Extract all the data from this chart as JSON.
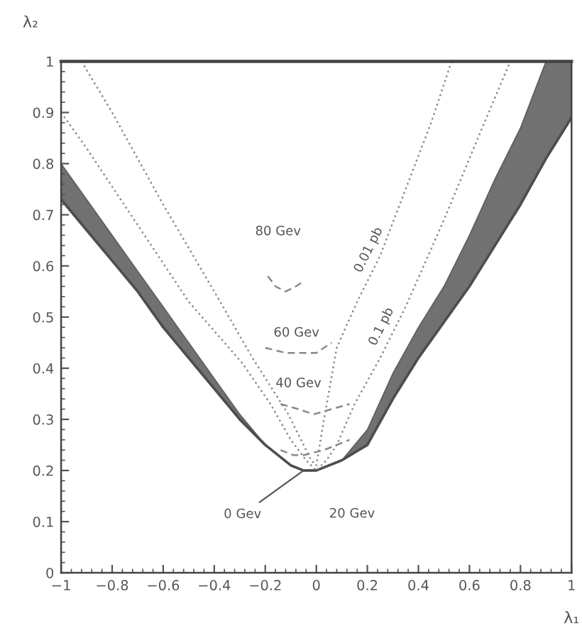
{
  "chart_data": {
    "type": "line",
    "xlabel": "λ₁",
    "ylabel": "λ₂",
    "xlim": [
      -1,
      1
    ],
    "ylim": [
      0,
      1
    ],
    "xticks": [
      {
        "value": -1,
        "label": "−1"
      },
      {
        "value": -0.8,
        "label": "−0.8"
      },
      {
        "value": -0.6,
        "label": "−0.6"
      },
      {
        "value": -0.4,
        "label": "−0.4"
      },
      {
        "value": -0.2,
        "label": "−0.2"
      },
      0,
      0.2,
      0.4,
      0.6,
      0.8,
      1
    ],
    "yticks": [
      0,
      0.1,
      0.2,
      0.3,
      0.4,
      0.5,
      0.6,
      0.7,
      0.8,
      0.9,
      1
    ],
    "series": [
      {
        "color": "#4d4d4d",
        "x": [
          -1,
          -0.9,
          -0.8,
          -0.7,
          -0.6,
          -0.5,
          -0.4,
          -0.3,
          -0.2,
          -0.1,
          -0.05,
          0,
          0.1,
          0.2,
          0.3,
          0.4,
          0.5,
          0.6,
          0.7,
          0.8,
          0.9,
          1
        ],
        "values": [
          0.73,
          0.67,
          0.61,
          0.55,
          0.48,
          0.42,
          0.36,
          0.3,
          0.25,
          0.21,
          0.2,
          0.2,
          0.22,
          0.25,
          0.34,
          0.42,
          0.49,
          0.56,
          0.64,
          0.72,
          0.81,
          0.89
        ],
        "lower": [
          0.73,
          0.67,
          0.61,
          0.55,
          0.48,
          0.42,
          0.36,
          0.3,
          0.25,
          0.21,
          0.2,
          0.2,
          0.22,
          0.25,
          0.34,
          0.42,
          0.49,
          0.56,
          0.64,
          0.72,
          0.81,
          0.89
        ],
        "upper": [
          0.8,
          0.73,
          0.66,
          0.59,
          0.52,
          0.45,
          0.38,
          0.31,
          0.25,
          0.21,
          0.2,
          0.2,
          0.22,
          0.28,
          0.39,
          0.48,
          0.56,
          0.66,
          0.77,
          0.87,
          1,
          1
        ]
      },
      {
        "color": "#8a8a8a",
        "line_style": "dotted",
        "x": [
          -0.92,
          -0.8,
          -0.6,
          -0.4,
          -0.25,
          -0.11,
          -0.05,
          -0.02,
          0,
          0.03,
          0.08,
          0.16,
          0.25,
          0.35,
          0.45,
          0.53
        ],
        "values": [
          1,
          0.9,
          0.72,
          0.55,
          0.42,
          0.31,
          0.25,
          0.22,
          0.21,
          0.3,
          0.44,
          0.53,
          0.62,
          0.75,
          0.88,
          1
        ]
      },
      {
        "color": "#8a8a8a",
        "line_style": "dotted",
        "x": [
          -1,
          -0.9,
          -0.7,
          -0.5,
          -0.29,
          -0.18,
          -0.1,
          -0.04,
          0,
          0.04,
          0.08,
          0.15,
          0.25,
          0.35,
          0.5,
          0.65,
          0.76
        ],
        "values": [
          0.9,
          0.83,
          0.68,
          0.53,
          0.41,
          0.33,
          0.26,
          0.22,
          0.2,
          0.22,
          0.25,
          0.33,
          0.42,
          0.52,
          0.69,
          0.87,
          1
        ]
      },
      {
        "color": "#8a8a8a",
        "line_style": "dashed",
        "x": [
          -0.19,
          -0.16,
          -0.12,
          -0.08,
          -0.05
        ],
        "values": [
          0.58,
          0.56,
          0.55,
          0.56,
          0.57
        ]
      },
      {
        "color": "#8a8a8a",
        "line_style": "dashed",
        "x": [
          -0.2,
          -0.12,
          -0.05,
          0,
          0.06
        ],
        "values": [
          0.44,
          0.43,
          0.43,
          0.43,
          0.45
        ]
      },
      {
        "color": "#8a8a8a",
        "line_style": "dashed",
        "x": [
          -0.14,
          -0.07,
          -0.01,
          0.06,
          0.13
        ],
        "values": [
          0.33,
          0.32,
          0.31,
          0.32,
          0.33
        ]
      },
      {
        "color": "#8a8a8a",
        "line_style": "dashed",
        "x": [
          -0.14,
          -0.09,
          -0.05,
          0.03,
          0.13
        ],
        "values": [
          0.24,
          0.23,
          0.23,
          0.24,
          0.26
        ]
      }
    ],
    "annotations": [
      "80 Gev",
      {
        "text": "60 Gev",
        "x": -0.05,
        "y": 0.43
      },
      {
        "text": "40 Gev",
        "x": -0.07,
        "y": 0.32
      },
      "20 Gev",
      {
        "text": "0 Gev",
        "x": -0.05,
        "y": 0.2
      },
      {
        "text": "0.01 pb",
        "x": 0.25,
        "y": 0.62
      },
      {
        "text": "0.1 pb",
        "x": 0.3,
        "y": 0.47
      }
    ]
  }
}
